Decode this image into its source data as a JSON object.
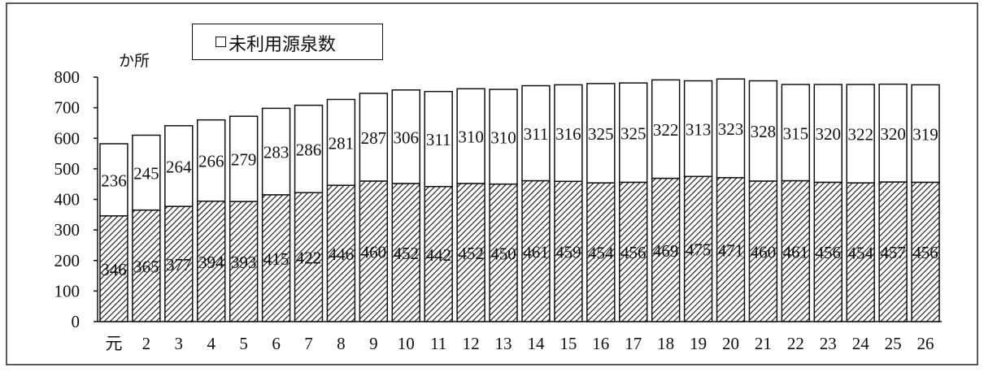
{
  "chart_data": {
    "type": "bar",
    "stacked": true,
    "unit_label": "か所",
    "legend": [
      "未利用源泉数"
    ],
    "legend_placement": "top-left",
    "ylim": [
      0,
      800
    ],
    "yticks": [
      0,
      100,
      200,
      300,
      400,
      500,
      600,
      700,
      800
    ],
    "grid": false,
    "categories": [
      "元",
      "2",
      "3",
      "4",
      "5",
      "6",
      "7",
      "8",
      "9",
      "10",
      "11",
      "12",
      "13",
      "14",
      "15",
      "16",
      "17",
      "18",
      "19",
      "20",
      "21",
      "22",
      "23",
      "24",
      "25",
      "26"
    ],
    "series": [
      {
        "values": [
          346,
          365,
          377,
          394,
          393,
          415,
          422,
          446,
          460,
          452,
          442,
          452,
          450,
          461,
          459,
          454,
          456,
          469,
          475,
          471,
          460,
          461,
          456,
          454,
          457,
          456
        ],
        "fill": "hatched"
      },
      {
        "name": "未利用源泉数",
        "values": [
          236,
          245,
          264,
          266,
          279,
          283,
          286,
          281,
          287,
          306,
          311,
          310,
          310,
          311,
          316,
          325,
          325,
          322,
          313,
          323,
          328,
          315,
          320,
          322,
          320,
          319
        ],
        "fill": "white"
      }
    ],
    "colors": {
      "bar_outline": "#111111",
      "hatch": "#111111",
      "background": "#ffffff"
    }
  }
}
